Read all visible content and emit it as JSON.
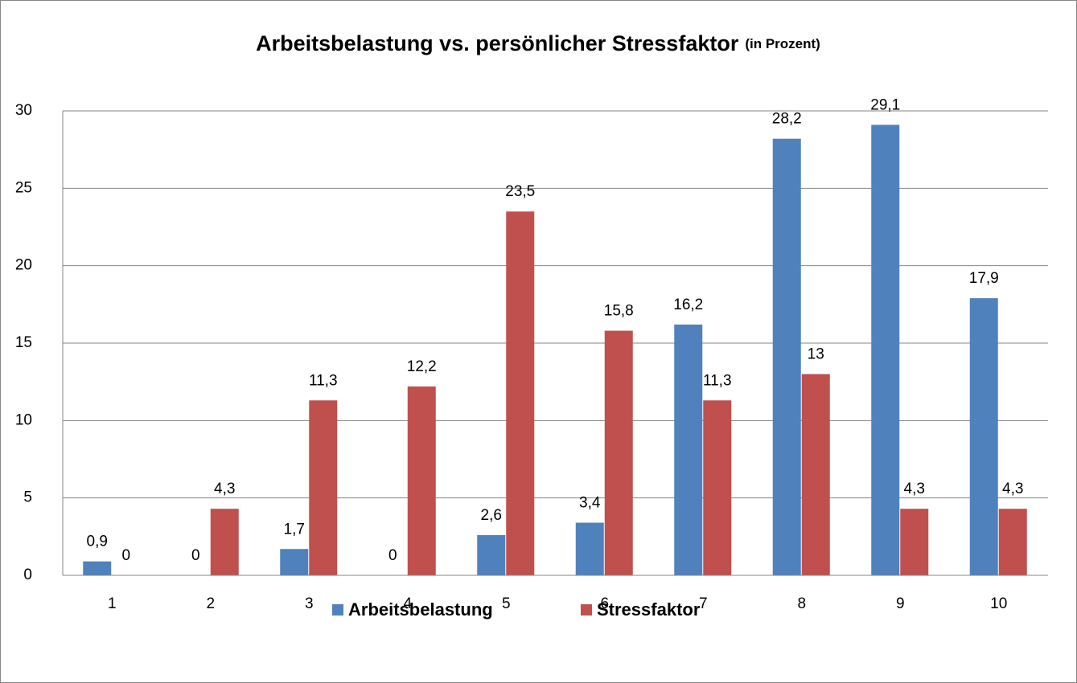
{
  "chart_data": {
    "type": "bar",
    "title": "Arbeitsbelastung vs. persönlicher Stressfaktor",
    "subtitle": "(in Prozent)",
    "categories": [
      "1",
      "2",
      "3",
      "4",
      "5",
      "6",
      "7",
      "8",
      "9",
      "10"
    ],
    "series": [
      {
        "name": "Arbeitsbelastung",
        "color": "#4f81bd",
        "values": [
          0.9,
          0,
          1.7,
          0,
          2.6,
          3.4,
          16.2,
          28.2,
          29.1,
          17.9
        ],
        "value_labels": [
          "0,9",
          "0",
          "1,7",
          "0",
          "2,6",
          "3,4",
          "16,2",
          "28,2",
          "29,1",
          "17,9"
        ]
      },
      {
        "name": "Stressfaktor",
        "color": "#c0504d",
        "values": [
          0,
          4.3,
          11.3,
          12.2,
          23.5,
          15.8,
          11.3,
          13,
          4.3,
          4.3
        ],
        "value_labels": [
          "0",
          "4,3",
          "11,3",
          "12,2",
          "23,5",
          "15,8",
          "11,3",
          "13",
          "4,3",
          "4,3"
        ]
      }
    ],
    "ylim": [
      0,
      30
    ],
    "yticks": [
      0,
      5,
      10,
      15,
      20,
      25,
      30
    ],
    "grid": true,
    "legend": "bottom"
  }
}
